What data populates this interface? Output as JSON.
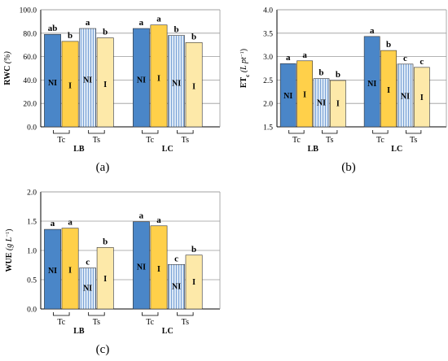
{
  "colors": {
    "NI_Tc": "#4a86c8",
    "I_Tc": "#ffd04a",
    "NI_Ts": "#dbe8f6",
    "NI_Ts_stripe": "#7ba3d6",
    "I_Ts": "#fde9a9",
    "grid": "#9a9a9a"
  },
  "chart_data": [
    {
      "type": "bar",
      "panel_label": "(a)",
      "ylabel_main": "RWC",
      "ylabel_unit": " (%)",
      "ylim": [
        0,
        100
      ],
      "yticks": [
        "0.0",
        "20.0",
        "40.0",
        "60.0",
        "80.0",
        "100.0"
      ],
      "ytick_values": [
        0,
        20,
        40,
        60,
        80,
        100
      ],
      "grid": true,
      "groups": [
        {
          "name": "LB",
          "subgroups": [
            "Tc",
            "Ts"
          ],
          "bars": [
            {
              "treatment": "NI",
              "temp": "Tc",
              "value": 79,
              "letter": "ab"
            },
            {
              "treatment": "I",
              "temp": "Tc",
              "value": 73,
              "letter": "b"
            },
            {
              "treatment": "NI",
              "temp": "Ts",
              "value": 84,
              "letter": "a"
            },
            {
              "treatment": "I",
              "temp": "Ts",
              "value": 76,
              "letter": "b"
            }
          ]
        },
        {
          "name": "LC",
          "subgroups": [
            "Tc",
            "Ts"
          ],
          "bars": [
            {
              "treatment": "NI",
              "temp": "Tc",
              "value": 84,
              "letter": "a"
            },
            {
              "treatment": "I",
              "temp": "Tc",
              "value": 87,
              "letter": "a"
            },
            {
              "treatment": "NI",
              "temp": "Ts",
              "value": 78,
              "letter": "b"
            },
            {
              "treatment": "I",
              "temp": "Ts",
              "value": 72,
              "letter": "b"
            }
          ]
        }
      ]
    },
    {
      "type": "bar",
      "panel_label": "(b)",
      "ylabel_main": "ET",
      "ylabel_sub": "c",
      "ylabel_unit": " (L pt",
      "ylabel_sup": "−1",
      "ylabel_close": ")",
      "ylim": [
        1.5,
        4.0
      ],
      "yticks": [
        "1.5",
        "2.0",
        "2.5",
        "3.0",
        "3.5",
        "4.0"
      ],
      "ytick_values": [
        1.5,
        2.0,
        2.5,
        3.0,
        3.5,
        4.0
      ],
      "grid": true,
      "groups": [
        {
          "name": "LB",
          "subgroups": [
            "Tc",
            "Ts"
          ],
          "bars": [
            {
              "treatment": "NI",
              "temp": "Tc",
              "value": 2.85,
              "letter": "a"
            },
            {
              "treatment": "I",
              "temp": "Tc",
              "value": 2.91,
              "letter": "a"
            },
            {
              "treatment": "NI",
              "temp": "Ts",
              "value": 2.53,
              "letter": "b"
            },
            {
              "treatment": "I",
              "temp": "Ts",
              "value": 2.49,
              "letter": "b"
            }
          ]
        },
        {
          "name": "LC",
          "subgroups": [
            "Tc",
            "Ts"
          ],
          "bars": [
            {
              "treatment": "NI",
              "temp": "Tc",
              "value": 3.43,
              "letter": "a"
            },
            {
              "treatment": "I",
              "temp": "Tc",
              "value": 3.13,
              "letter": "b"
            },
            {
              "treatment": "NI",
              "temp": "Ts",
              "value": 2.84,
              "letter": "c"
            },
            {
              "treatment": "I",
              "temp": "Ts",
              "value": 2.77,
              "letter": "c"
            }
          ]
        }
      ]
    },
    {
      "type": "bar",
      "panel_label": "(c)",
      "ylabel_main": "WUE",
      "ylabel_unit": " (g L",
      "ylabel_sup": "−1",
      "ylabel_close": ")",
      "ylim": [
        0,
        2.0
      ],
      "yticks": [
        "0.0",
        "0.5",
        "1.0",
        "1.5",
        "2.0"
      ],
      "ytick_values": [
        0,
        0.5,
        1.0,
        1.5,
        2.0
      ],
      "grid": true,
      "groups": [
        {
          "name": "LB",
          "subgroups": [
            "Tc",
            "Ts"
          ],
          "bars": [
            {
              "treatment": "NI",
              "temp": "Tc",
              "value": 1.36,
              "letter": "a"
            },
            {
              "treatment": "I",
              "temp": "Tc",
              "value": 1.38,
              "letter": "a"
            },
            {
              "treatment": "NI",
              "temp": "Ts",
              "value": 0.7,
              "letter": "c"
            },
            {
              "treatment": "I",
              "temp": "Ts",
              "value": 1.05,
              "letter": "b"
            }
          ]
        },
        {
          "name": "LC",
          "subgroups": [
            "Tc",
            "Ts"
          ],
          "bars": [
            {
              "treatment": "NI",
              "temp": "Tc",
              "value": 1.49,
              "letter": "a"
            },
            {
              "treatment": "I",
              "temp": "Tc",
              "value": 1.42,
              "letter": "a"
            },
            {
              "treatment": "NI",
              "temp": "Ts",
              "value": 0.76,
              "letter": "c"
            },
            {
              "treatment": "I",
              "temp": "Ts",
              "value": 0.92,
              "letter": "b"
            }
          ]
        }
      ]
    }
  ]
}
